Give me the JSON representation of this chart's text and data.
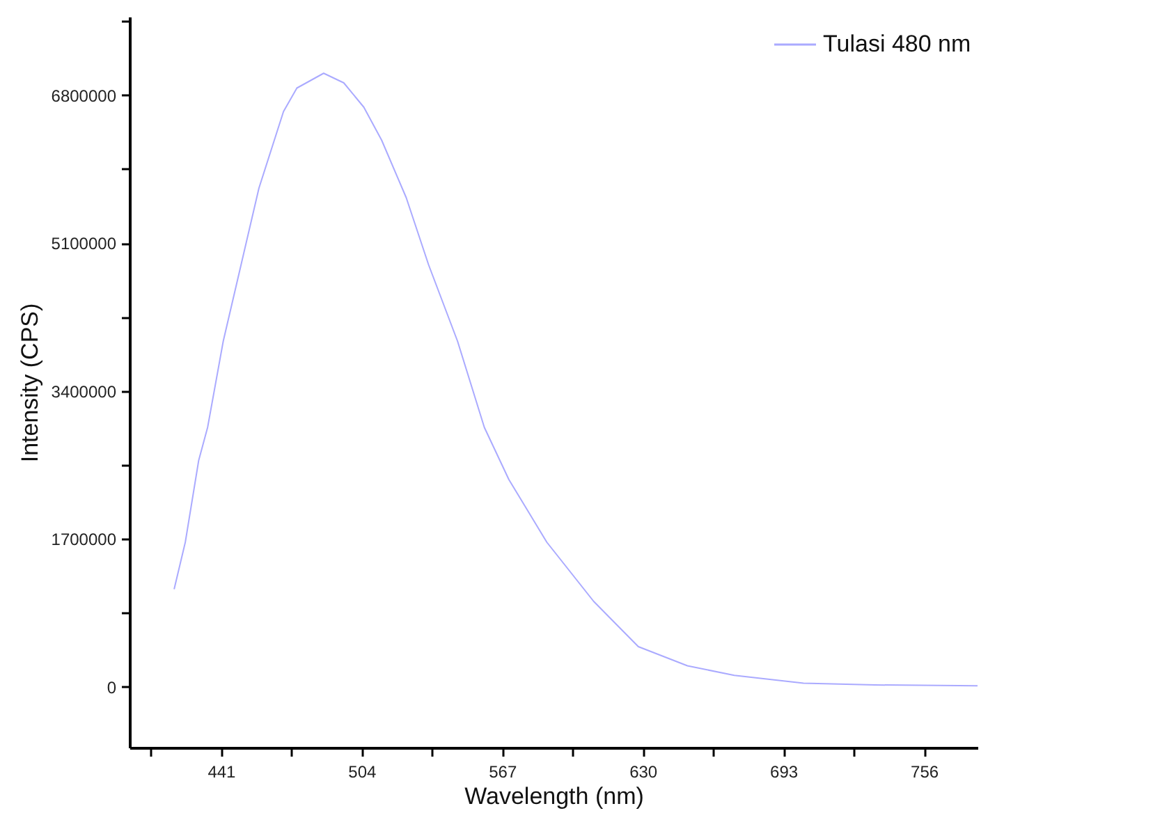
{
  "chart_data": {
    "type": "line",
    "xlabel": "Wavelength (nm)",
    "ylabel": "Intensity (CPS)",
    "xlim": [
      400,
      780
    ],
    "ylim": [
      -700000,
      7700000
    ],
    "xticks": [
      {
        "value": 409.5,
        "label": null
      },
      441,
      {
        "value": 472.5,
        "label": null
      },
      504,
      {
        "value": 535.5,
        "label": null
      },
      567,
      {
        "value": 598.5,
        "label": null
      },
      630,
      {
        "value": 661.5,
        "label": null
      },
      693,
      {
        "value": 724.5,
        "label": null
      },
      756
    ],
    "yticks": [
      0,
      {
        "value": 850000,
        "label": null
      },
      1700000,
      {
        "value": 2550000,
        "label": null
      },
      3400000,
      {
        "value": 4250000,
        "label": null
      },
      5100000,
      {
        "value": 5950000,
        "label": null
      },
      6800000,
      {
        "value": 7650000,
        "label": null
      }
    ],
    "grid": false,
    "legend": "top right",
    "marker": "none",
    "line_style": "solid",
    "series": [
      {
        "name": "Tulasi 480 nm",
        "color": "#aaaaff",
        "x": [
          420,
          425,
          431,
          435,
          442,
          450,
          458,
          469,
          475,
          487,
          496,
          505,
          513,
          524,
          534,
          547,
          555,
          559,
          570,
          587,
          608,
          628,
          640,
          650,
          671,
          702,
          734,
          780
        ],
        "values": [
          1120000,
          1660000,
          2600000,
          2980000,
          3970000,
          4850000,
          5730000,
          6610000,
          6880000,
          7050000,
          6940000,
          6660000,
          6280000,
          5620000,
          4850000,
          3970000,
          3310000,
          2980000,
          2380000,
          1660000,
          980000,
          460000,
          340000,
          240000,
          130000,
          40000,
          20000,
          10000
        ]
      }
    ]
  }
}
